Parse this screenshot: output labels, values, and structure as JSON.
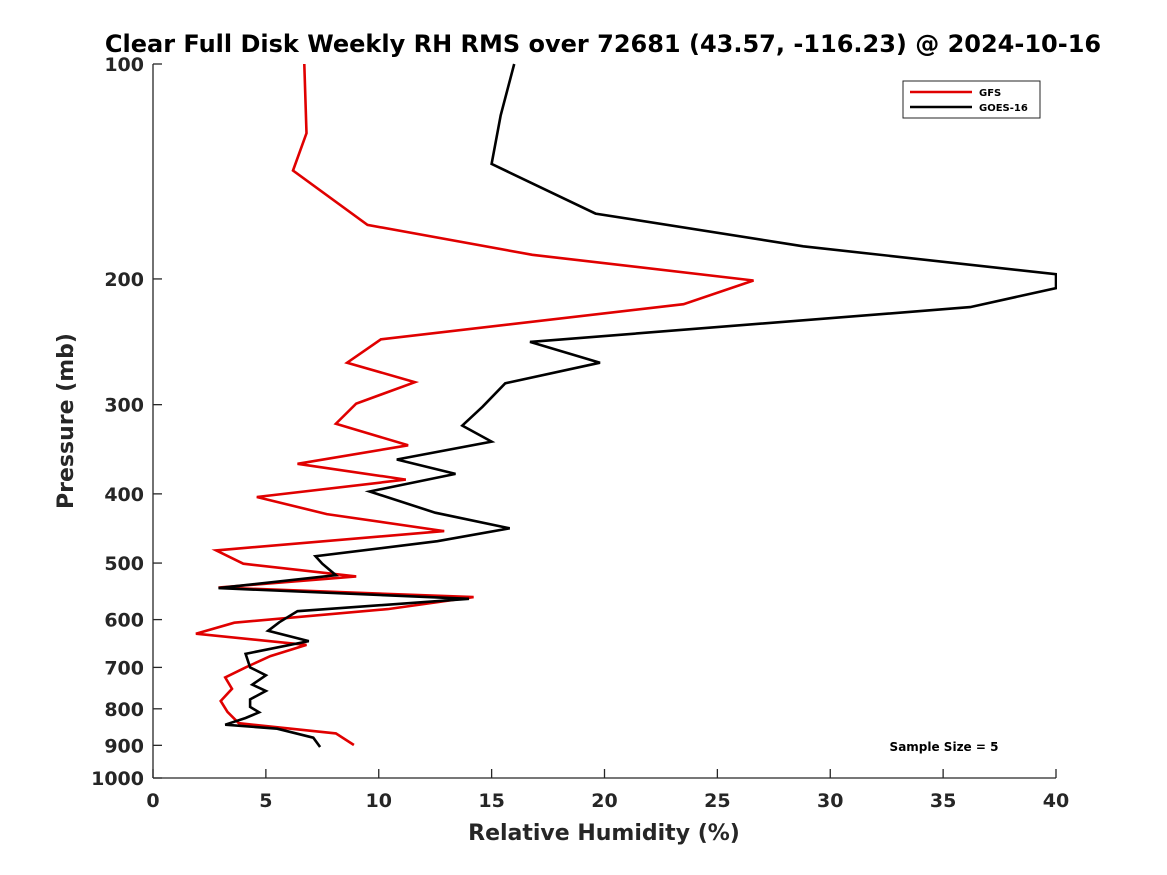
{
  "chart_data": {
    "type": "line",
    "title": "Clear Full Disk Weekly RH RMS over 72681 (43.57, -116.23) @ 2024-10-16",
    "xlabel": "Relative Humidity (%)",
    "ylabel": "Pressure (mb)",
    "xlim": [
      0,
      40
    ],
    "ylim": [
      100,
      1000
    ],
    "y_scale": "log",
    "y_direction": "reversed",
    "x_ticks": [
      0,
      5,
      10,
      15,
      20,
      25,
      30,
      35,
      40
    ],
    "x_tick_labels": [
      "0",
      "5",
      "10",
      "15",
      "20",
      "25",
      "30",
      "35",
      "40"
    ],
    "y_ticks": [
      100,
      200,
      300,
      400,
      500,
      600,
      700,
      800,
      900,
      1000
    ],
    "y_tick_labels": [
      "100",
      "200",
      "300",
      "400",
      "500",
      "600",
      "700",
      "800",
      "900",
      "1000"
    ],
    "grid": false,
    "legend_position": "top-right",
    "annotation": "Sample Size = 5",
    "series": [
      {
        "name": "GFS",
        "color": "#e00000",
        "points": [
          [
            6.7,
            100
          ],
          [
            6.8,
            125
          ],
          [
            6.2,
            141
          ],
          [
            9.5,
            168
          ],
          [
            16.8,
            185
          ],
          [
            26.6,
            201
          ],
          [
            23.5,
            217
          ],
          [
            10.1,
            243
          ],
          [
            8.6,
            262
          ],
          [
            11.6,
            279
          ],
          [
            9.0,
            299
          ],
          [
            8.1,
            319
          ],
          [
            11.3,
            342
          ],
          [
            6.4,
            363
          ],
          [
            11.2,
            382
          ],
          [
            4.6,
            404
          ],
          [
            7.7,
            427
          ],
          [
            12.9,
            451
          ],
          [
            2.8,
            480
          ],
          [
            4.0,
            501
          ],
          [
            9.0,
            522
          ],
          [
            2.9,
            541
          ],
          [
            14.2,
            558
          ],
          [
            10.4,
            580
          ],
          [
            3.6,
            606
          ],
          [
            1.9,
            628
          ],
          [
            6.8,
            651
          ],
          [
            5.2,
            675
          ],
          [
            4.1,
            700
          ],
          [
            3.2,
            723
          ],
          [
            3.5,
            750
          ],
          [
            3.0,
            780
          ],
          [
            3.3,
            808
          ],
          [
            3.8,
            838
          ],
          [
            8.1,
            866
          ],
          [
            8.9,
            899
          ]
        ]
      },
      {
        "name": "GOES-16",
        "color": "#000000",
        "points": [
          [
            16.0,
            100
          ],
          [
            15.4,
            118
          ],
          [
            15.0,
            138
          ],
          [
            17.0,
            148
          ],
          [
            19.6,
            162
          ],
          [
            28.8,
            180
          ],
          [
            40.0,
            197
          ],
          [
            40.0,
            206
          ],
          [
            36.2,
            219
          ],
          [
            16.7,
            245
          ],
          [
            19.8,
            262
          ],
          [
            15.6,
            280
          ],
          [
            14.6,
            302
          ],
          [
            13.7,
            321
          ],
          [
            15.0,
            338
          ],
          [
            10.8,
            358
          ],
          [
            13.4,
            375
          ],
          [
            9.6,
            397
          ],
          [
            12.5,
            425
          ],
          [
            15.8,
            447
          ],
          [
            12.6,
            466
          ],
          [
            7.2,
            489
          ],
          [
            7.5,
            501
          ],
          [
            8.1,
            520
          ],
          [
            2.9,
            542
          ],
          [
            14.0,
            561
          ],
          [
            6.4,
            584
          ],
          [
            5.6,
            605
          ],
          [
            5.1,
            622
          ],
          [
            6.9,
            643
          ],
          [
            4.1,
            670
          ],
          [
            4.3,
            700
          ],
          [
            5.0,
            718
          ],
          [
            4.4,
            740
          ],
          [
            5.0,
            755
          ],
          [
            4.3,
            776
          ],
          [
            4.3,
            795
          ],
          [
            4.7,
            809
          ],
          [
            4.1,
            824
          ],
          [
            3.2,
            842
          ],
          [
            5.5,
            853
          ],
          [
            7.1,
            878
          ],
          [
            7.4,
            905
          ]
        ]
      }
    ]
  }
}
